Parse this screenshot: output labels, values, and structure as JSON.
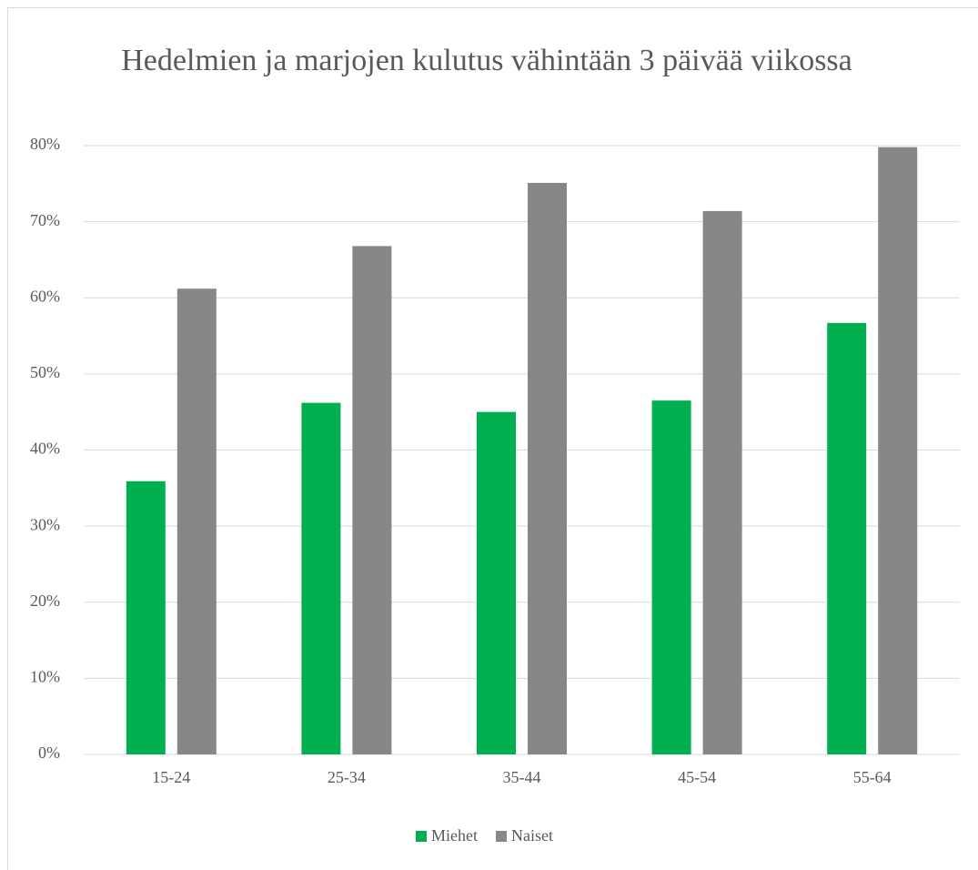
{
  "chart_data": {
    "type": "bar",
    "title": "Hedelmien ja marjojen kulutus vähintään 3 päivää viikossa",
    "categories": [
      "15-24",
      "25-34",
      "35-44",
      "45-54",
      "55-64"
    ],
    "series": [
      {
        "name": "Miehet",
        "color": "#00b050",
        "values": [
          35.9,
          46.2,
          45.0,
          46.5,
          56.7
        ]
      },
      {
        "name": "Naiset",
        "color": "#878787",
        "values": [
          61.2,
          66.8,
          75.1,
          71.4,
          79.8
        ]
      }
    ],
    "ylim": [
      0,
      80
    ],
    "yticks": [
      {
        "value": 0,
        "label": "0%"
      },
      {
        "value": 10,
        "label": "10%"
      },
      {
        "value": 20,
        "label": "20%"
      },
      {
        "value": 30,
        "label": "30%"
      },
      {
        "value": 40,
        "label": "40%"
      },
      {
        "value": 50,
        "label": "50%"
      },
      {
        "value": 60,
        "label": "60%"
      },
      {
        "value": 70,
        "label": "70%"
      },
      {
        "value": 80,
        "label": "80%"
      }
    ],
    "grid": true,
    "legend": "bottom"
  }
}
